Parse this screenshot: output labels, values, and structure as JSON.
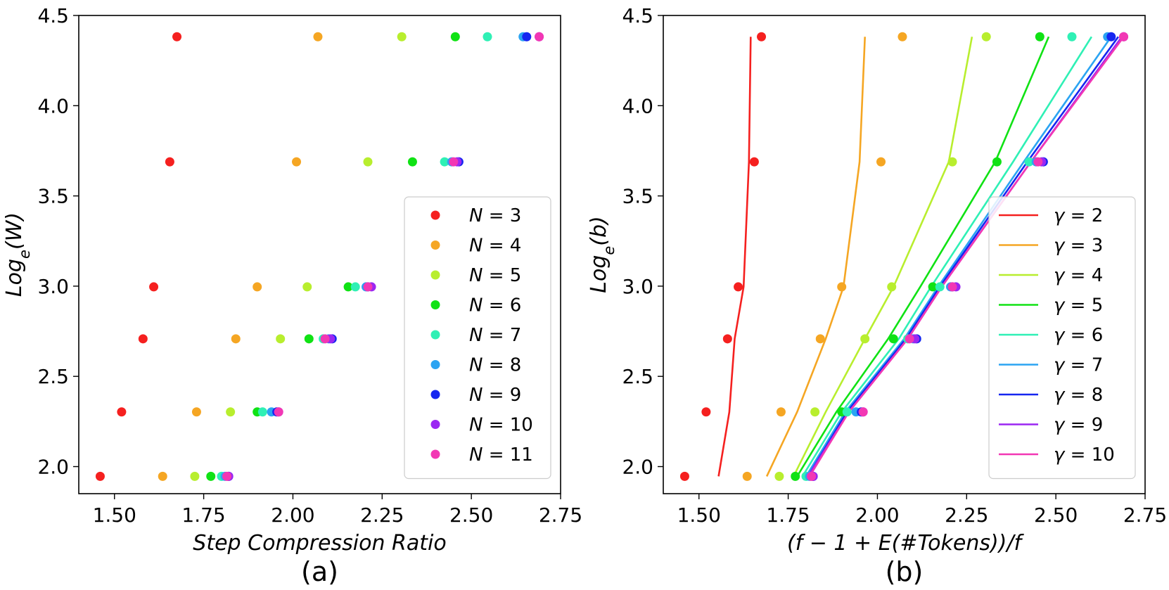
{
  "chart_data": [
    {
      "type": "scatter",
      "panel_label": "(a)",
      "xlabel": "Step Compression Ratio",
      "ylabel": "Log_e(W)",
      "ylabel_parts": {
        "base": "Log",
        "sub": "e",
        "arg": "(W)"
      },
      "xlim": [
        1.4,
        2.75
      ],
      "ylim": [
        1.85,
        4.5
      ],
      "xticks": [
        "1.50",
        "1.75",
        "2.00",
        "2.25",
        "2.50",
        "2.75"
      ],
      "yticks": [
        "2.0",
        "2.5",
        "3.0",
        "3.5",
        "4.0",
        "4.5"
      ],
      "legend_position": "center-right",
      "series": [
        {
          "name": "N = 3",
          "label_var": "N",
          "label_val": "3",
          "color": "#f5201f",
          "x": [
            1.46,
            1.52,
            1.58,
            1.61,
            1.655,
            1.675
          ],
          "y": [
            1.946,
            2.303,
            2.708,
            2.996,
            3.689,
            4.382
          ]
        },
        {
          "name": "N = 4",
          "label_var": "N",
          "label_val": "4",
          "color": "#f5a623",
          "x": [
            1.635,
            1.73,
            1.84,
            1.9,
            2.01,
            2.07
          ],
          "y": [
            1.946,
            2.303,
            2.708,
            2.996,
            3.689,
            4.382
          ]
        },
        {
          "name": "N = 5",
          "label_var": "N",
          "label_val": "5",
          "color": "#b8ee2e",
          "x": [
            1.725,
            1.825,
            1.965,
            2.04,
            2.21,
            2.305
          ],
          "y": [
            1.946,
            2.303,
            2.708,
            2.996,
            3.689,
            4.382
          ]
        },
        {
          "name": "N = 6",
          "label_var": "N",
          "label_val": "6",
          "color": "#10e214",
          "x": [
            1.77,
            1.9,
            2.045,
            2.155,
            2.335,
            2.455
          ],
          "y": [
            1.946,
            2.303,
            2.708,
            2.996,
            3.689,
            4.382
          ]
        },
        {
          "name": "N = 7",
          "label_var": "N",
          "label_val": "7",
          "color": "#2ff0b5",
          "x": [
            1.8,
            1.915,
            2.085,
            2.175,
            2.425,
            2.545
          ],
          "y": [
            1.946,
            2.303,
            2.708,
            2.996,
            3.689,
            4.382
          ]
        },
        {
          "name": "N = 8",
          "label_var": "N",
          "label_val": "8",
          "color": "#2ba4f2",
          "x": [
            1.81,
            1.94,
            2.1,
            2.205,
            2.445,
            2.645
          ],
          "y": [
            1.946,
            2.303,
            2.708,
            2.996,
            3.689,
            4.382
          ]
        },
        {
          "name": "N = 9",
          "label_var": "N",
          "label_val": "9",
          "color": "#1626f0",
          "x": [
            1.82,
            1.955,
            2.11,
            2.21,
            2.465,
            2.655
          ],
          "y": [
            1.946,
            2.303,
            2.708,
            2.996,
            3.689,
            4.382
          ]
        },
        {
          "name": "N = 10",
          "label_var": "N",
          "label_val": "10",
          "color": "#9b27f2",
          "x": [
            1.82,
            1.96,
            2.105,
            2.22,
            2.46,
            2.69
          ],
          "y": [
            1.946,
            2.303,
            2.708,
            2.996,
            3.689,
            4.382
          ]
        },
        {
          "name": "N = 11",
          "label_var": "N",
          "label_val": "11",
          "color": "#f237b4",
          "x": [
            1.815,
            1.96,
            2.09,
            2.21,
            2.45,
            2.69
          ],
          "y": [
            1.946,
            2.303,
            2.708,
            2.996,
            3.689,
            4.382
          ]
        }
      ]
    },
    {
      "type": "line+scatter",
      "panel_label": "(b)",
      "xlabel": "(f − 1 + E(#Tokens))/f",
      "ylabel": "Log_e(b)",
      "ylabel_parts": {
        "base": "Log",
        "sub": "e",
        "arg": "(b)"
      },
      "xlim": [
        1.4,
        2.75
      ],
      "ylim": [
        1.85,
        4.5
      ],
      "xticks": [
        "1.50",
        "1.75",
        "2.00",
        "2.25",
        "2.50",
        "2.75"
      ],
      "yticks": [
        "2.0",
        "2.5",
        "3.0",
        "3.5",
        "4.0",
        "4.5"
      ],
      "legend_position": "center-right",
      "points_note": "same scatter points as panel (a)",
      "series": [
        {
          "name": "γ = 2",
          "label_var": "γ",
          "label_val": "2",
          "color": "#f5201f",
          "x": [
            1.555,
            1.585,
            1.6,
            1.625,
            1.64,
            1.645
          ],
          "y": [
            1.946,
            2.303,
            2.708,
            2.996,
            3.689,
            4.382
          ]
        },
        {
          "name": "γ = 3",
          "label_var": "γ",
          "label_val": "3",
          "color": "#f5a623",
          "x": [
            1.69,
            1.775,
            1.855,
            1.905,
            1.95,
            1.965
          ],
          "y": [
            1.946,
            2.303,
            2.708,
            2.996,
            3.689,
            4.382
          ]
        },
        {
          "name": "γ = 4",
          "label_var": "γ",
          "label_val": "4",
          "color": "#b8ee2e",
          "x": [
            1.765,
            1.855,
            1.965,
            2.045,
            2.2,
            2.265
          ],
          "y": [
            1.946,
            2.303,
            2.708,
            2.996,
            3.689,
            4.382
          ]
        },
        {
          "name": "γ = 5",
          "label_var": "γ",
          "label_val": "5",
          "color": "#10e214",
          "x": [
            1.775,
            1.885,
            2.03,
            2.12,
            2.33,
            2.48
          ],
          "y": [
            1.946,
            2.303,
            2.708,
            2.996,
            3.689,
            4.382
          ]
        },
        {
          "name": "γ = 6",
          "label_var": "γ",
          "label_val": "6",
          "color": "#2ff0b5",
          "x": [
            1.79,
            1.9,
            2.06,
            2.15,
            2.38,
            2.6
          ],
          "y": [
            1.946,
            2.303,
            2.708,
            2.996,
            3.689,
            4.382
          ]
        },
        {
          "name": "γ = 7",
          "label_var": "γ",
          "label_val": "7",
          "color": "#2ba4f2",
          "x": [
            1.8,
            1.91,
            2.075,
            2.17,
            2.41,
            2.655
          ],
          "y": [
            1.946,
            2.303,
            2.708,
            2.996,
            3.689,
            4.382
          ]
        },
        {
          "name": "γ = 8",
          "label_var": "γ",
          "label_val": "8",
          "color": "#1626f0",
          "x": [
            1.805,
            1.915,
            2.08,
            2.175,
            2.42,
            2.675
          ],
          "y": [
            1.946,
            2.303,
            2.708,
            2.996,
            3.689,
            4.382
          ]
        },
        {
          "name": "γ = 9",
          "label_var": "γ",
          "label_val": "9",
          "color": "#9b27f2",
          "x": [
            1.805,
            1.92,
            2.085,
            2.18,
            2.43,
            2.685
          ],
          "y": [
            1.946,
            2.303,
            2.708,
            2.996,
            3.689,
            4.382
          ]
        },
        {
          "name": "γ = 10",
          "label_var": "γ",
          "label_val": "10",
          "color": "#f237b4",
          "x": [
            1.81,
            1.92,
            2.085,
            2.18,
            2.43,
            2.69
          ],
          "y": [
            1.946,
            2.303,
            2.708,
            2.996,
            3.689,
            4.382
          ]
        }
      ]
    }
  ]
}
